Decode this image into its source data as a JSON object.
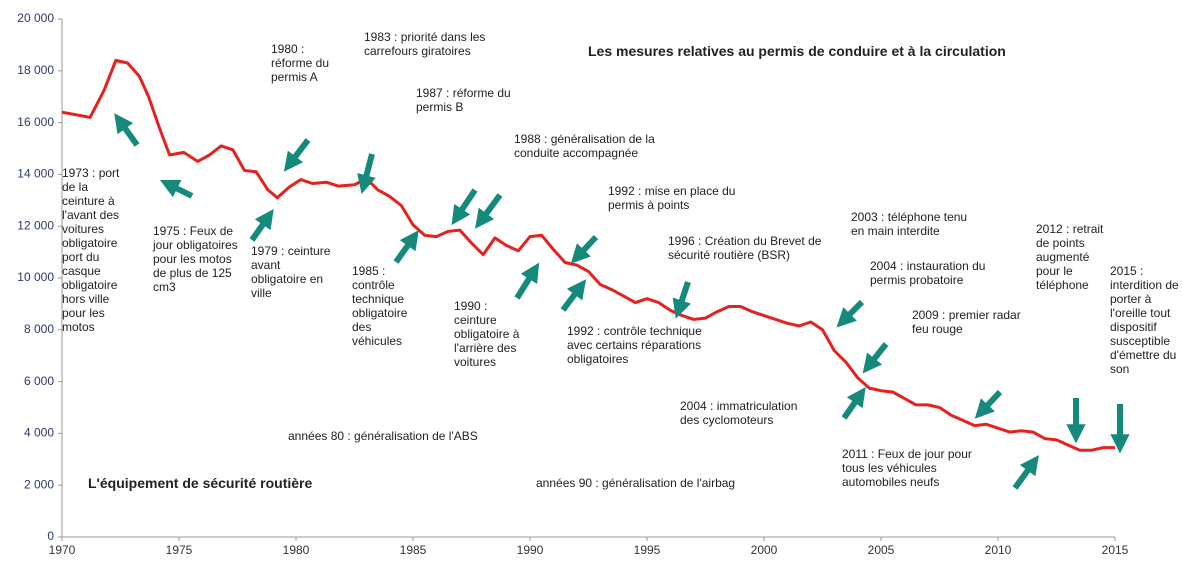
{
  "chart_data": {
    "type": "line",
    "color": "#e8201e",
    "x": [
      1970,
      1971.2,
      1971.8,
      1972.3,
      1972.8,
      1973.3,
      1973.7,
      1974.2,
      1974.6,
      1975.2,
      1975.8,
      1976.3,
      1976.8,
      1977.3,
      1977.8,
      1978.3,
      1978.8,
      1979.2,
      1979.7,
      1980.2,
      1980.7,
      1981.3,
      1981.8,
      1982.5,
      1983,
      1983.5,
      1984,
      1984.5,
      1985,
      1985.5,
      1986,
      1986.5,
      1987,
      1987.5,
      1988,
      1988.5,
      1989,
      1989.5,
      1990,
      1990.5,
      1991,
      1991.5,
      1992,
      1992.5,
      1993,
      1993.5,
      1994,
      1994.5,
      1995,
      1995.5,
      1996,
      1996.5,
      1997,
      1997.5,
      1998,
      1998.5,
      1999,
      1999.5,
      2000,
      2000.5,
      2001,
      2001.5,
      2002,
      2002.5,
      2003,
      2003.5,
      2004,
      2004.5,
      2005,
      2005.5,
      2006,
      2006.5,
      2007,
      2007.5,
      2008,
      2008.5,
      2009,
      2009.5,
      2010,
      2010.5,
      2011,
      2011.5,
      2012,
      2012.5,
      2013,
      2013.5,
      2014,
      2014.5,
      2015
    ],
    "values": [
      16400,
      16200,
      17250,
      18400,
      18300,
      17800,
      17000,
      15700,
      14750,
      14850,
      14500,
      14750,
      15100,
      14950,
      14150,
      14100,
      13400,
      13100,
      13500,
      13800,
      13650,
      13700,
      13550,
      13600,
      13850,
      13400,
      13150,
      12800,
      12050,
      11650,
      11600,
      11800,
      11850,
      11350,
      10900,
      11550,
      11250,
      11050,
      11600,
      11650,
      11100,
      10600,
      10500,
      10250,
      9750,
      9550,
      9300,
      9050,
      9200,
      9050,
      8750,
      8550,
      8400,
      8450,
      8700,
      8900,
      8900,
      8700,
      8550,
      8400,
      8250,
      8150,
      8300,
      8000,
      7200,
      6750,
      6150,
      5750,
      5650,
      5600,
      5350,
      5100,
      5100,
      5000,
      4700,
      4500,
      4300,
      4350,
      4200,
      4050,
      4100,
      4050,
      3800,
      3750,
      3550,
      3350,
      3350,
      3450,
      3450
    ],
    "xlim": [
      1970,
      2015
    ],
    "xticks": [
      1970,
      1975,
      1980,
      1985,
      1990,
      1995,
      2000,
      2005,
      2010,
      2015
    ],
    "ylim": [
      0,
      20000
    ],
    "yticks": [
      {
        "value": 0,
        "label": "0"
      },
      {
        "value": 2000,
        "label": "2 000"
      },
      {
        "value": 4000,
        "label": "4 000"
      },
      {
        "value": 6000,
        "label": "6 000"
      },
      {
        "value": 8000,
        "label": "8 000"
      },
      {
        "value": 10000,
        "label": "10 000"
      },
      {
        "value": 12000,
        "label": "12 000"
      },
      {
        "value": 14000,
        "label": "14 000"
      },
      {
        "value": 16000,
        "label": "16 000"
      },
      {
        "value": 18000,
        "label": "18 000"
      },
      {
        "value": 20000,
        "label": "20 000"
      }
    ],
    "annotations": [
      "Les mesures relatives au permis de conduire et à la circulation",
      "L'équipement de sécurité routière",
      "1973 : port de la ceinture à l'avant des voitures obligatoire port du casque obligatoire hors ville pour les motos",
      "1975 : Feux de jour obligatoires pour les motos de plus de 125 cm3",
      "1979 : ceinture avant obligatoire en ville",
      "1980 : réforme du permis A",
      "1983 : priorité dans les carrefours giratoires",
      "1985 : contrôle technique obligatoire des véhicules",
      "1987 : réforme du permis B",
      "1988 : généralisation de la conduite accompagnée",
      "1990 : ceinture obligatoire à l'arrière des voitures",
      "1992 : mise en place du permis à points",
      "1992 : contrôle technique avec certains réparations obligatoires",
      "1996 : Création du Brevet de sécurité routière (BSR)",
      "2003 : téléphone tenu en main interdite",
      "2004 : instauration du permis probatoire",
      "2009 : premier radar feu rouge",
      "2004 : immatriculation des cyclomoteurs",
      "2011 : Feux de jour pour tous les véhicules automobiles neufs",
      "2012 : retrait de points augmenté pour le téléphone",
      "2015 : interdition de porter à l'oreille tout dispositif susceptible d'émettre du son",
      "années 80 : généralisation de l'ABS",
      "années 90 : généralisation de l'airbag"
    ]
  }
}
